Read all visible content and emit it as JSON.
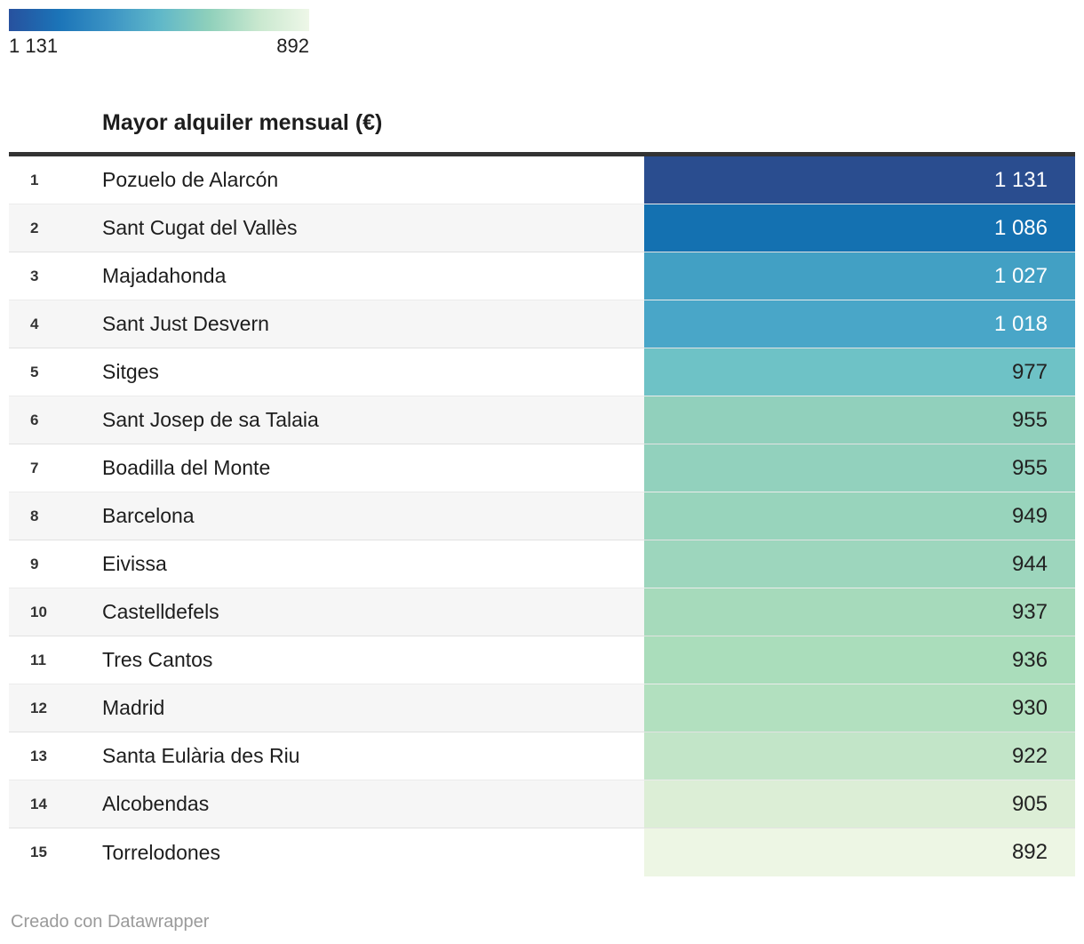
{
  "legend": {
    "left_label": "1 131",
    "right_label": "892",
    "gradient_colors": [
      "#27519e",
      "#1b74b8",
      "#3b93c4",
      "#5fb7c9",
      "#8fd0bb",
      "#c9e8cf",
      "#eef7e8"
    ]
  },
  "header": {
    "title": "Mayor alquiler mensual (€)"
  },
  "chart_data": {
    "type": "table",
    "title": "Mayor alquiler mensual (€)",
    "columns": [
      "rank",
      "municipality",
      "value"
    ],
    "value_unit": "€/month",
    "color_scale": {
      "max": 1131,
      "min": 892,
      "max_color": "#2a4d8f",
      "min_color": "#edf6e4"
    },
    "rows": [
      {
        "rank": "1",
        "name": "Pozuelo de Alarcón",
        "value": "1 131",
        "numeric": 1131,
        "cell_color": "#2a4d8f",
        "text_color": "#ffffff"
      },
      {
        "rank": "2",
        "name": "Sant Cugat del Vallès",
        "value": "1 086",
        "numeric": 1086,
        "cell_color": "#1471b1",
        "text_color": "#ffffff"
      },
      {
        "rank": "3",
        "name": "Majadahonda",
        "value": "1 027",
        "numeric": 1027,
        "cell_color": "#42a0c4",
        "text_color": "#ffffff"
      },
      {
        "rank": "4",
        "name": "Sant Just Desvern",
        "value": "1 018",
        "numeric": 1018,
        "cell_color": "#49a6c8",
        "text_color": "#ffffff"
      },
      {
        "rank": "5",
        "name": "Sitges",
        "value": "977",
        "numeric": 977,
        "cell_color": "#6ec2c6",
        "text_color": "#222222"
      },
      {
        "rank": "6",
        "name": "Sant Josep de sa Talaia",
        "value": "955",
        "numeric": 955,
        "cell_color": "#91d0bc",
        "text_color": "#222222"
      },
      {
        "rank": "7",
        "name": "Boadilla del Monte",
        "value": "955",
        "numeric": 955,
        "cell_color": "#92d1bd",
        "text_color": "#222222"
      },
      {
        "rank": "8",
        "name": "Barcelona",
        "value": "949",
        "numeric": 949,
        "cell_color": "#98d4bc",
        "text_color": "#222222"
      },
      {
        "rank": "9",
        "name": "Eivissa",
        "value": "944",
        "numeric": 944,
        "cell_color": "#9dd6bd",
        "text_color": "#222222"
      },
      {
        "rank": "10",
        "name": "Castelldefels",
        "value": "937",
        "numeric": 937,
        "cell_color": "#a6dabb",
        "text_color": "#222222"
      },
      {
        "rank": "11",
        "name": "Tres Cantos",
        "value": "936",
        "numeric": 936,
        "cell_color": "#aaddbb",
        "text_color": "#222222"
      },
      {
        "rank": "12",
        "name": "Madrid",
        "value": "930",
        "numeric": 930,
        "cell_color": "#b2e0bf",
        "text_color": "#222222"
      },
      {
        "rank": "13",
        "name": "Santa Eulària des Riu",
        "value": "922",
        "numeric": 922,
        "cell_color": "#c2e5c8",
        "text_color": "#222222"
      },
      {
        "rank": "14",
        "name": "Alcobendas",
        "value": "905",
        "numeric": 905,
        "cell_color": "#dceed6",
        "text_color": "#222222"
      },
      {
        "rank": "15",
        "name": "Torrelodones",
        "value": "892",
        "numeric": 892,
        "cell_color": "#edf6e4",
        "text_color": "#222222"
      }
    ]
  },
  "footer": {
    "credit": "Creado con Datawrapper"
  }
}
